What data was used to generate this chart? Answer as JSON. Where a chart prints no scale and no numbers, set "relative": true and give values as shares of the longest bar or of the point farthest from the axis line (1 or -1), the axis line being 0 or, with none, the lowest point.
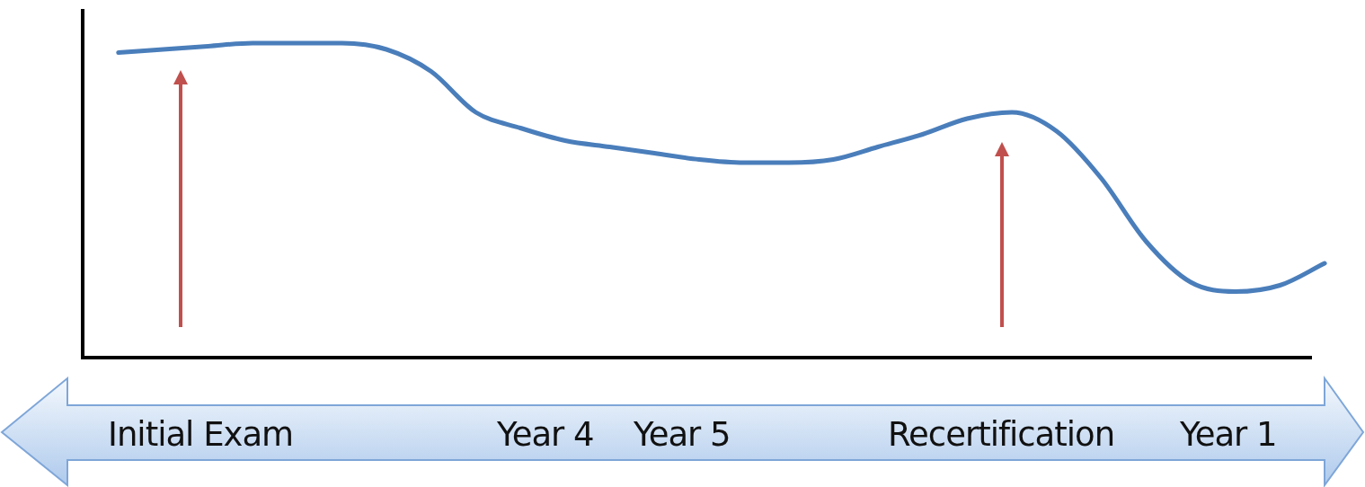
{
  "chart_data": {
    "type": "line",
    "relative": true,
    "categories": [
      null,
      null,
      null,
      null,
      null,
      null,
      null,
      null,
      null,
      null,
      null,
      null,
      null,
      null,
      null,
      null,
      null,
      null,
      null,
      null,
      null,
      null,
      null,
      null,
      null,
      null,
      null,
      null
    ],
    "series": [
      {
        "color": "#4a7ebb",
        "values": [
          0.97,
          0.98,
          0.99,
          1.0,
          1.0,
          1.0,
          0.98,
          0.91,
          0.78,
          0.73,
          0.69,
          0.67,
          0.65,
          0.63,
          0.62,
          0.62,
          0.63,
          0.67,
          0.71,
          0.76,
          0.78,
          0.72,
          0.57,
          0.37,
          0.24,
          0.21,
          0.23,
          0.3
        ]
      }
    ],
    "annotations": [
      "Initial Exam",
      "Year 4",
      "Year 5",
      "Recertification",
      "Year 1"
    ]
  }
}
